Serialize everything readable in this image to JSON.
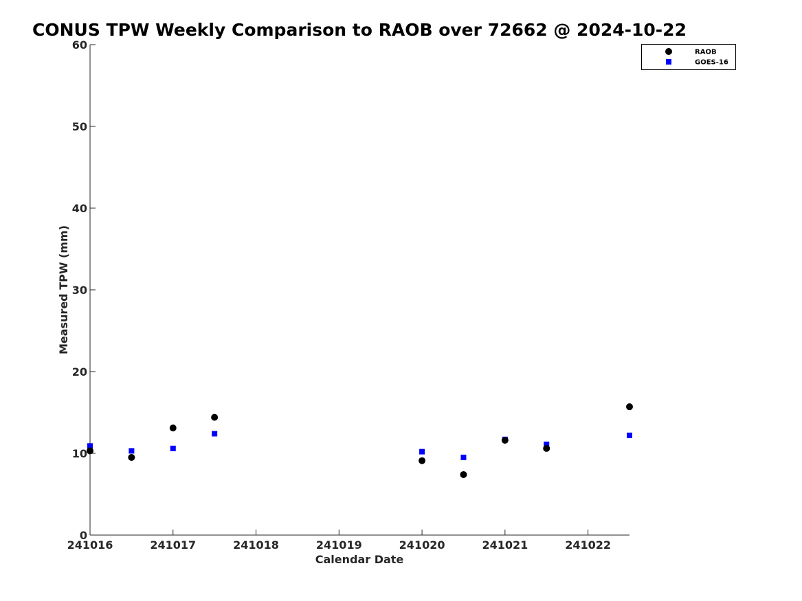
{
  "chart_data": {
    "type": "scatter",
    "title": "CONUS TPW Weekly Comparison to RAOB over 72662 @ 2024-10-22",
    "xlabel": "Calendar Date",
    "ylabel": "Measured TPW (mm)",
    "xlim": [
      "2024-10-16",
      "2024-10-22 12:00"
    ],
    "ylim": [
      0,
      60
    ],
    "x_tick_values": [
      "2024-10-16",
      "2024-10-17",
      "2024-10-18",
      "2024-10-19",
      "2024-10-20",
      "2024-10-21",
      "2024-10-22"
    ],
    "x_tick_labels": [
      "241016",
      "241017",
      "241018",
      "241019",
      "241020",
      "241021",
      "241022"
    ],
    "y_ticks": [
      0,
      10,
      20,
      30,
      40,
      50,
      60
    ],
    "grid": false,
    "legend_position": "top-right",
    "series": [
      {
        "name": "RAOB",
        "marker": "circle",
        "color": "#000000",
        "points": [
          {
            "x": "2024-10-16 00:00",
            "y": 10.3
          },
          {
            "x": "2024-10-16 12:00",
            "y": 9.5
          },
          {
            "x": "2024-10-17 00:00",
            "y": 13.1
          },
          {
            "x": "2024-10-17 12:00",
            "y": 14.4
          },
          {
            "x": "2024-10-20 00:00",
            "y": 9.1
          },
          {
            "x": "2024-10-20 12:00",
            "y": 7.4
          },
          {
            "x": "2024-10-21 00:00",
            "y": 11.6
          },
          {
            "x": "2024-10-21 12:00",
            "y": 10.6
          },
          {
            "x": "2024-10-22 12:00",
            "y": 15.7
          }
        ]
      },
      {
        "name": "GOES-16",
        "marker": "square",
        "color": "#0000ff",
        "points": [
          {
            "x": "2024-10-16 00:00",
            "y": 10.9
          },
          {
            "x": "2024-10-16 12:00",
            "y": 10.3
          },
          {
            "x": "2024-10-17 00:00",
            "y": 10.6
          },
          {
            "x": "2024-10-17 12:00",
            "y": 12.4
          },
          {
            "x": "2024-10-20 00:00",
            "y": 10.2
          },
          {
            "x": "2024-10-20 12:00",
            "y": 9.5
          },
          {
            "x": "2024-10-21 00:00",
            "y": 11.7
          },
          {
            "x": "2024-10-21 12:00",
            "y": 11.1
          },
          {
            "x": "2024-10-22 12:00",
            "y": 12.2
          }
        ]
      }
    ]
  }
}
